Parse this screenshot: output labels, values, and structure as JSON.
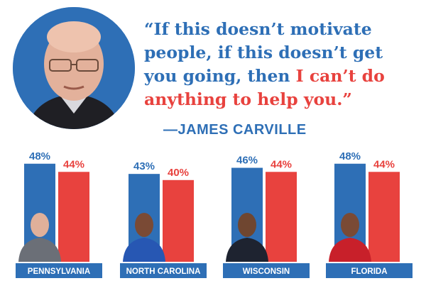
{
  "quote": {
    "line1": "“If this doesn’t motivate",
    "line2": "people, if this doesn’t get",
    "line3a": "you going, then ",
    "line3b": "I can’t do",
    "line4": "anything to help you.”",
    "attribution": "—JAMES CARVILLE"
  },
  "colors": {
    "blue": "#2e6fb6",
    "red": "#e8423e"
  },
  "chart_data": {
    "type": "bar",
    "unit": "%",
    "categories": [
      "PENNSYLVANIA",
      "NORTH CAROLINA",
      "WISCONSIN",
      "FLORIDA"
    ],
    "series": [
      {
        "values": [
          48,
          43,
          46,
          48
        ],
        "labels": [
          "48%",
          "43%",
          "46%",
          "48%"
        ],
        "color": "#2e6fb6"
      },
      {
        "values": [
          44,
          40,
          44,
          44
        ],
        "labels": [
          "44%",
          "40%",
          "44%",
          "44%"
        ],
        "color": "#e8423e"
      }
    ]
  }
}
